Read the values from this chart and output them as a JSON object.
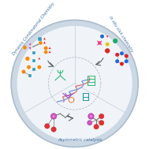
{
  "fig_bg": "#ffffff",
  "outer_circle_color": "#c8d8e8",
  "inner_circle_color": "#eef2f7",
  "title_top_left": "Dynamic Combinatorial Chemistry",
  "title_top_right": "In situ click chemistry",
  "title_bottom": "Asymmetric catalysis",
  "title_color": "#3a6aa0",
  "divider_color": "#c0ccd8",
  "dashed_circle_color": "#a0aac0"
}
